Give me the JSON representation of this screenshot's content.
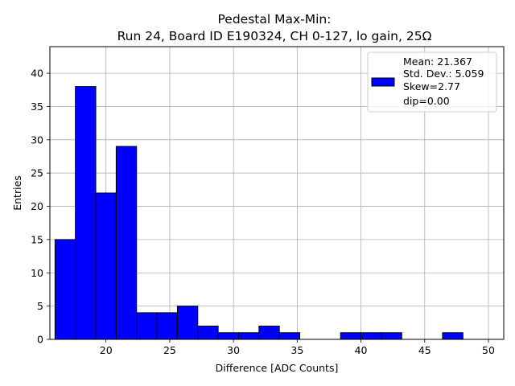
{
  "chart_data": {
    "type": "bar",
    "title": "Pedestal Max-Min:",
    "subtitle": "Run 24, Board ID E190324, CH 0-127, lo gain, 25Ω",
    "xlabel": "Difference [ADC Counts]",
    "ylabel": "Entries",
    "xlim": [
      15.6,
      51.2
    ],
    "ylim": [
      0,
      44
    ],
    "x_ticks": [
      20,
      25,
      30,
      35,
      40,
      45,
      50
    ],
    "y_ticks": [
      0,
      5,
      10,
      15,
      20,
      25,
      30,
      35,
      40
    ],
    "grid": true,
    "bar_color": "#0000ff",
    "edge_color": "#000000",
    "bin_edges": [
      16.0,
      17.6,
      19.2,
      20.8,
      22.4,
      24.0,
      25.6,
      27.2,
      28.8,
      30.4,
      32.0,
      33.6,
      35.2,
      36.8,
      38.4,
      40.0,
      41.6,
      43.2,
      44.8,
      46.4,
      48.0,
      49.6
    ],
    "counts": [
      15,
      38,
      22,
      29,
      4,
      4,
      5,
      2,
      1,
      1,
      2,
      1,
      0,
      0,
      1,
      1,
      1,
      0,
      0,
      1,
      0
    ],
    "legend": {
      "position": "top-right",
      "lines": [
        "Mean: 21.367",
        "Std. Dev.: 5.059",
        "Skew=2.77",
        "dip=0.00"
      ]
    }
  }
}
